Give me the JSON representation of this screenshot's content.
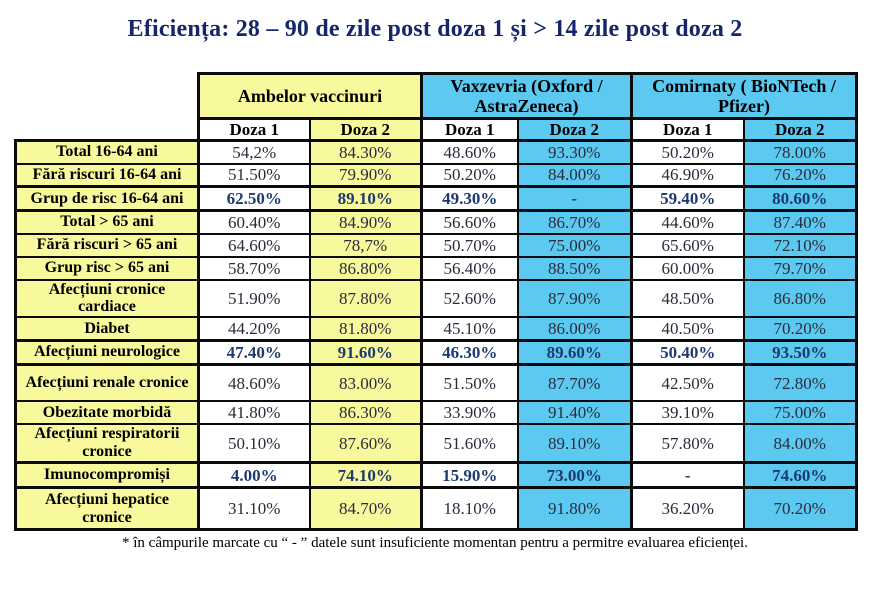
{
  "page": {
    "title": "Eficiența: 28 – 90 de zile post doza 1 și > 14 zile post doza 2",
    "footnote": "* în câmpurile marcate cu “ - ” datele sunt insuficiente momentan pentru a permitre evaluarea eficienței."
  },
  "colors": {
    "title_navy": "#17266b",
    "normal_value_text": "#2b2b3c",
    "bold_value_navy": "#1c3a70",
    "label_yellow": "#f8f89c",
    "dose2_cyan": "#5cc9f1",
    "border_black": "#0b0b0b"
  },
  "chart_data": {
    "type": "table",
    "title": "Eficiența: 28 – 90 de zile post doza 1 și > 14 zile post doza 2",
    "column_groups": [
      "Ambelor vaccinuri",
      "Vaxzevria (Oxford / AstraZeneca)",
      "Comirnaty ( BioNTech / Pfizer)"
    ],
    "columns": [
      "Doza 1",
      "Doza 2",
      "Doza 1",
      "Doza 2",
      "Doza 1",
      "Doza 2"
    ],
    "rows": [
      {
        "label": "Total 16-64 ani",
        "bold": false,
        "values": [
          "54,2%",
          "84.30%",
          "48.60%",
          "93.30%",
          "50.20%",
          "78.00%"
        ]
      },
      {
        "label": "Fără riscuri 16-64 ani",
        "bold": false,
        "values": [
          "51.50%",
          "79.90%",
          "50.20%",
          "84.00%",
          "46.90%",
          "76.20%"
        ]
      },
      {
        "label": "Grup de risc 16-64 ani",
        "bold": true,
        "values": [
          "62.50%",
          "89.10%",
          "49.30%",
          "-",
          "59.40%",
          "80.60%"
        ]
      },
      {
        "label": "Total > 65 ani",
        "bold": false,
        "values": [
          "60.40%",
          "84.90%",
          "56.60%",
          "86.70%",
          "44.60%",
          "87.40%"
        ]
      },
      {
        "label": "Fără riscuri > 65 ani",
        "bold": false,
        "values": [
          "64.60%",
          "78,7%",
          "50.70%",
          "75.00%",
          "65.60%",
          "72.10%"
        ]
      },
      {
        "label": "Grup risc > 65 ani",
        "bold": false,
        "values": [
          "58.70%",
          "86.80%",
          "56.40%",
          "88.50%",
          "60.00%",
          "79.70%"
        ]
      },
      {
        "label": "Afecțiuni cronice cardiace",
        "bold": false,
        "values": [
          "51.90%",
          "87.80%",
          "52.60%",
          "87.90%",
          "48.50%",
          "86.80%"
        ]
      },
      {
        "label": "Diabet",
        "bold": false,
        "values": [
          "44.20%",
          "81.80%",
          "45.10%",
          "86.00%",
          "40.50%",
          "70.20%"
        ]
      },
      {
        "label": "Afecțiuni neurologice",
        "bold": true,
        "values": [
          "47.40%",
          "91.60%",
          "46.30%",
          "89.60%",
          "50.40%",
          "93.50%"
        ]
      },
      {
        "label": "Afecțiuni renale cronice",
        "bold": false,
        "values": [
          "48.60%",
          "83.00%",
          "51.50%",
          "87.70%",
          "42.50%",
          "72.80%"
        ]
      },
      {
        "label": "Obezitate morbidă",
        "bold": false,
        "values": [
          "41.80%",
          "86.30%",
          "33.90%",
          "91.40%",
          "39.10%",
          "75.00%"
        ]
      },
      {
        "label": "Afecțiuni respiratorii cronice",
        "bold": false,
        "values": [
          "50.10%",
          "87.60%",
          "51.60%",
          "89.10%",
          "57.80%",
          "84.00%"
        ]
      },
      {
        "label": "Imunocompromiși",
        "bold": true,
        "values": [
          "4.00%",
          "74.10%",
          "15.90%",
          "73.00%",
          "-",
          "74.60%"
        ]
      },
      {
        "label": "Afecțiuni hepatice cronice",
        "bold": false,
        "values": [
          "31.10%",
          "84.70%",
          "18.10%",
          "91.80%",
          "36.20%",
          "70.20%"
        ]
      }
    ],
    "footnote": "* în câmpurile marcate cu “ - ” datele sunt insuficiente momentan pentru a permitre evaluarea eficienței.",
    "layout_hints": {
      "dose1_background": "white",
      "dose2_background_group1": "yellow",
      "dose2_background_groups2_3": "cyan",
      "row_label_background": "yellow",
      "grid": "black solid borders, thicker around groups and bold rows"
    }
  }
}
